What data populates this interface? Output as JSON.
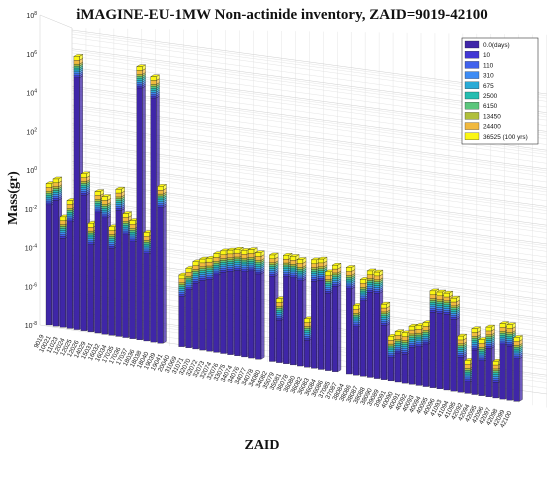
{
  "chart_data": {
    "type": "bar",
    "style": "3d-stacked",
    "title": "iMAGINE-EU-1MW Non-actinide inventory, ZAID=9019-42100",
    "xlabel": "ZAID",
    "ylabel": "Mass(gr)",
    "yscale": "log",
    "ylim": [
      1e-08,
      100000000
    ],
    "ytick_labels": [
      "10^-8",
      "10^-6",
      "10^-4",
      "10^-2",
      "10^0",
      "10^2",
      "10^4",
      "10^6",
      "10^8"
    ],
    "legend_position": "top-right",
    "grid": true,
    "colors": [
      "#3f26a8",
      "#4137d4",
      "#4162ec",
      "#3d8bf4",
      "#2aabd6",
      "#25bdb0",
      "#5bc67c",
      "#b0bf3a",
      "#f1b93e",
      "#fbf614"
    ],
    "series_names": [
      "0.0(days)",
      "10",
      "110",
      "310",
      "675",
      "2500",
      "6150",
      "13450",
      "24400",
      "36525 (100 yrs)"
    ],
    "categories": [
      "9019",
      "10021",
      "11023",
      "12024",
      "12025",
      "12026",
      "14029",
      "15031",
      "16032",
      "16034",
      "17035",
      "17036",
      "17037",
      "18036",
      "18038",
      "18040",
      "19039",
      "19041",
      "20040",
      "31069",
      "31071",
      "32070",
      "32072",
      "32073",
      "32074",
      "32076",
      "33075",
      "34074",
      "34076",
      "34077",
      "34078",
      "34080",
      "34082",
      "35079",
      "35081",
      "36078",
      "36080",
      "36082",
      "36083",
      "36084",
      "36086",
      "37085",
      "37087",
      "38084",
      "38086",
      "38087",
      "38088",
      "38090",
      "39089",
      "39091",
      "40090",
      "40091",
      "40092",
      "40093",
      "40094",
      "40095",
      "40096",
      "41093",
      "41094",
      "41095",
      "42092",
      "42094",
      "42095",
      "42096",
      "42097",
      "42098",
      "42099",
      "42100"
    ],
    "series": [
      {
        "name": "0.0(days)",
        "log10_values": [
          -1.8,
          -1.5,
          -3.4,
          -2.5,
          5.0,
          -1.0,
          -3.5,
          -1.8,
          -2.0,
          -3.5,
          -1.5,
          -2.7,
          -3.0,
          5.0,
          -3.5,
          4.6,
          -1.0,
          null,
          null,
          -5.4,
          -5.0,
          -4.6,
          -4.4,
          -4.3,
          -4.0,
          -3.8,
          -3.7,
          -3.6,
          -3.6,
          -3.5,
          -3.6,
          null,
          -3.6,
          -5.8,
          -3.5,
          -3.5,
          -3.6,
          -6.6,
          -3.5,
          -3.4,
          -4.0,
          -3.6,
          null,
          -3.6,
          -5.5,
          -4.1,
          -3.6,
          -3.6,
          -5.2,
          -6.8,
          -6.5,
          -6.5,
          -6.1,
          -6.0,
          -5.8,
          -4.1,
          -4.1,
          -4.1,
          -4.3,
          -6.2,
          -7.4,
          -5.7,
          -6.2,
          -5.5,
          -7.2,
          -5.2,
          -5.2,
          -5.8
        ]
      },
      {
        "name": "10",
        "log10_values": [
          -1.7,
          -1.4,
          -3.3,
          -2.4,
          5.1,
          -0.9,
          -3.4,
          -1.7,
          -1.9,
          -3.4,
          -1.4,
          -2.6,
          -2.9,
          5.1,
          -3.4,
          4.7,
          -0.9,
          null,
          null,
          -5.3,
          -4.9,
          -4.5,
          -4.3,
          -4.2,
          -3.9,
          -3.7,
          -3.6,
          -3.5,
          -3.5,
          -3.4,
          -3.5,
          null,
          -3.5,
          -5.7,
          -3.4,
          -3.4,
          -3.5,
          -6.5,
          -3.4,
          -3.3,
          -3.9,
          -3.5,
          null,
          -3.5,
          -5.4,
          -4.0,
          -3.5,
          -3.5,
          -5.1,
          -6.7,
          -6.4,
          -6.4,
          -6.0,
          -5.9,
          -5.7,
          -4.0,
          -4.0,
          -4.0,
          -4.2,
          -6.1,
          -7.3,
          -5.6,
          -6.1,
          -5.4,
          -7.1,
          -5.1,
          -5.1,
          -5.7
        ]
      },
      {
        "name": "110",
        "log10_values": [
          -1.6,
          -1.3,
          -3.2,
          -2.3,
          5.2,
          -0.8,
          -3.3,
          -1.6,
          -1.8,
          -3.3,
          -1.3,
          -2.5,
          -2.8,
          5.2,
          -3.3,
          4.8,
          -0.8,
          null,
          null,
          -5.2,
          -4.8,
          -4.4,
          -4.2,
          -4.1,
          -3.8,
          -3.6,
          -3.5,
          -3.4,
          -3.4,
          -3.3,
          -3.4,
          null,
          -3.4,
          -5.6,
          -3.3,
          -3.3,
          -3.4,
          -6.4,
          -3.3,
          -3.2,
          -3.8,
          -3.4,
          null,
          -3.4,
          -5.3,
          -3.9,
          -3.4,
          -3.4,
          -5.0,
          -6.6,
          -6.3,
          -6.3,
          -5.9,
          -5.8,
          -5.6,
          -3.9,
          -3.9,
          -3.9,
          -4.1,
          -6.0,
          -7.2,
          -5.5,
          -6.0,
          -5.3,
          -7.0,
          -5.0,
          -5.0,
          -5.6
        ]
      },
      {
        "name": "310",
        "log10_values": [
          -1.5,
          -1.2,
          -3.1,
          -2.2,
          5.3,
          -0.7,
          -3.2,
          -1.5,
          -1.7,
          -3.2,
          -1.2,
          -2.4,
          -2.7,
          5.3,
          -3.2,
          4.9,
          -0.7,
          null,
          null,
          -5.1,
          -4.7,
          -4.3,
          -4.1,
          -4.0,
          -3.7,
          -3.5,
          -3.4,
          -3.3,
          -3.3,
          -3.2,
          -3.3,
          null,
          -3.3,
          -5.5,
          -3.2,
          -3.2,
          -3.3,
          -6.3,
          -3.2,
          -3.1,
          -3.7,
          -3.3,
          null,
          -3.3,
          -5.2,
          -3.8,
          -3.3,
          -3.3,
          -4.9,
          -6.5,
          -6.2,
          -6.2,
          -5.8,
          -5.7,
          -5.5,
          -3.8,
          -3.8,
          -3.8,
          -4.0,
          -5.9,
          -7.1,
          -5.4,
          -5.9,
          -5.2,
          -6.9,
          -4.9,
          -4.9,
          -5.5
        ]
      },
      {
        "name": "675",
        "log10_values": [
          -1.4,
          -1.1,
          -3.0,
          -2.1,
          5.4,
          -0.6,
          -3.1,
          -1.4,
          -1.6,
          -3.1,
          -1.1,
          -2.3,
          -2.6,
          5.4,
          -3.1,
          5.0,
          -0.6,
          null,
          null,
          -5.0,
          -4.6,
          -4.2,
          -4.0,
          -3.9,
          -3.6,
          -3.4,
          -3.3,
          -3.2,
          -3.2,
          -3.1,
          -3.2,
          null,
          -3.2,
          -5.4,
          -3.1,
          -3.1,
          -3.2,
          -6.2,
          -3.1,
          -3.0,
          -3.6,
          -3.2,
          null,
          -3.2,
          -5.1,
          -3.7,
          -3.2,
          -3.2,
          -4.8,
          -6.4,
          -6.1,
          -6.1,
          -5.7,
          -5.6,
          -5.4,
          -3.7,
          -3.7,
          -3.7,
          -3.9,
          -5.8,
          -7.0,
          -5.3,
          -5.8,
          -5.1,
          -6.8,
          -4.8,
          -4.8,
          -5.4
        ]
      },
      {
        "name": "2500",
        "log10_values": [
          -1.3,
          -1.0,
          -2.9,
          -2.0,
          5.5,
          -0.5,
          -3.0,
          -1.3,
          -1.5,
          -3.0,
          -1.0,
          -2.2,
          -2.5,
          5.5,
          -3.0,
          5.1,
          -0.5,
          null,
          null,
          -4.9,
          -4.5,
          -4.1,
          -3.9,
          -3.8,
          -3.5,
          -3.3,
          -3.2,
          -3.1,
          -3.1,
          -3.0,
          -3.1,
          null,
          -3.1,
          -5.3,
          -3.0,
          -3.0,
          -3.1,
          -6.1,
          -3.0,
          -2.9,
          -3.5,
          -3.1,
          null,
          -3.1,
          -5.0,
          -3.6,
          -3.1,
          -3.1,
          -4.7,
          -6.3,
          -6.0,
          -6.0,
          -5.6,
          -5.5,
          -5.3,
          -3.6,
          -3.6,
          -3.6,
          -3.8,
          -5.7,
          -6.9,
          -5.2,
          -5.7,
          -5.0,
          -6.7,
          -4.7,
          -4.7,
          -5.3
        ]
      },
      {
        "name": "6150",
        "log10_values": [
          -1.2,
          -0.9,
          -2.8,
          -1.9,
          5.6,
          -0.4,
          -2.9,
          -1.2,
          -1.4,
          -2.9,
          -0.9,
          -2.1,
          -2.4,
          5.6,
          -2.9,
          5.2,
          -0.4,
          null,
          null,
          -4.8,
          -4.4,
          -4.0,
          -3.8,
          -3.7,
          -3.4,
          -3.2,
          -3.1,
          -3.0,
          -3.0,
          -2.9,
          -3.0,
          null,
          -3.0,
          -5.2,
          -2.9,
          -2.9,
          -3.0,
          -6.0,
          -2.9,
          -2.8,
          -3.4,
          -3.0,
          null,
          -3.0,
          -4.9,
          -3.5,
          -3.0,
          -3.0,
          -4.6,
          -6.2,
          -5.9,
          -5.9,
          -5.5,
          -5.4,
          -5.2,
          -3.5,
          -3.5,
          -3.5,
          -3.7,
          -5.6,
          -6.8,
          -5.1,
          -5.6,
          -4.9,
          -6.6,
          -4.6,
          -4.6,
          -5.2
        ]
      },
      {
        "name": "13450",
        "log10_values": [
          -1.1,
          -0.8,
          -2.7,
          -1.8,
          5.7,
          -0.3,
          -2.8,
          -1.1,
          -1.3,
          -2.8,
          -0.8,
          -2.0,
          -2.3,
          5.7,
          -2.8,
          5.3,
          -0.3,
          null,
          null,
          -4.7,
          -4.3,
          -3.9,
          -3.7,
          -3.6,
          -3.3,
          -3.1,
          -3.0,
          -2.9,
          -2.9,
          -2.8,
          -2.9,
          null,
          -2.9,
          -5.1,
          -2.8,
          -2.8,
          -2.9,
          -5.9,
          -2.8,
          -2.7,
          -3.3,
          -2.9,
          null,
          -2.9,
          -4.8,
          -3.4,
          -2.9,
          -2.9,
          -4.5,
          -6.1,
          -5.8,
          -5.8,
          -5.4,
          -5.3,
          -5.1,
          -3.4,
          -3.4,
          -3.4,
          -3.6,
          -5.5,
          -6.7,
          -5.0,
          -5.5,
          -4.8,
          -6.5,
          -4.5,
          -4.5,
          -5.1
        ]
      },
      {
        "name": "24400",
        "log10_values": [
          -0.9,
          -0.6,
          -2.5,
          -1.6,
          5.9,
          -0.1,
          -2.6,
          -0.9,
          -1.1,
          -2.6,
          -0.6,
          -1.8,
          -2.1,
          5.9,
          -2.6,
          5.5,
          -0.1,
          null,
          null,
          -4.5,
          -4.1,
          -3.7,
          -3.5,
          -3.4,
          -3.1,
          -2.9,
          -2.8,
          -2.7,
          -2.7,
          -2.6,
          -2.7,
          null,
          -2.7,
          -4.9,
          -2.6,
          -2.6,
          -2.7,
          -5.7,
          -2.6,
          -2.5,
          -3.1,
          -2.7,
          null,
          -2.7,
          -4.6,
          -3.2,
          -2.7,
          -2.7,
          -4.3,
          -5.9,
          -5.6,
          -5.6,
          -5.2,
          -5.1,
          -4.9,
          -3.2,
          -3.2,
          -3.2,
          -3.4,
          -5.3,
          -6.5,
          -4.8,
          -5.3,
          -4.6,
          -6.3,
          -4.3,
          -4.3,
          -4.9
        ]
      },
      {
        "name": "36525 (100 yrs)",
        "log10_values": [
          -0.7,
          -0.4,
          -2.3,
          -1.4,
          6.1,
          0.1,
          -2.4,
          -0.7,
          -0.9,
          -2.4,
          -0.4,
          -1.6,
          -1.9,
          6.1,
          -2.4,
          5.7,
          0.1,
          null,
          null,
          -4.3,
          -3.9,
          -3.5,
          -3.3,
          -3.2,
          -2.9,
          -2.7,
          -2.6,
          -2.5,
          -2.5,
          -2.4,
          -2.5,
          null,
          -2.5,
          -4.7,
          -2.4,
          -2.4,
          -2.5,
          -5.5,
          -2.4,
          -2.3,
          -2.9,
          -2.5,
          null,
          -2.5,
          -4.4,
          -3.0,
          -2.5,
          -2.5,
          -4.1,
          -5.7,
          -5.4,
          -5.4,
          -5.0,
          -4.9,
          -4.7,
          -3.0,
          -3.0,
          -3.0,
          -3.2,
          -5.1,
          -6.3,
          -4.6,
          -5.1,
          -4.4,
          -6.1,
          -4.1,
          -4.1,
          -4.7
        ]
      }
    ]
  }
}
